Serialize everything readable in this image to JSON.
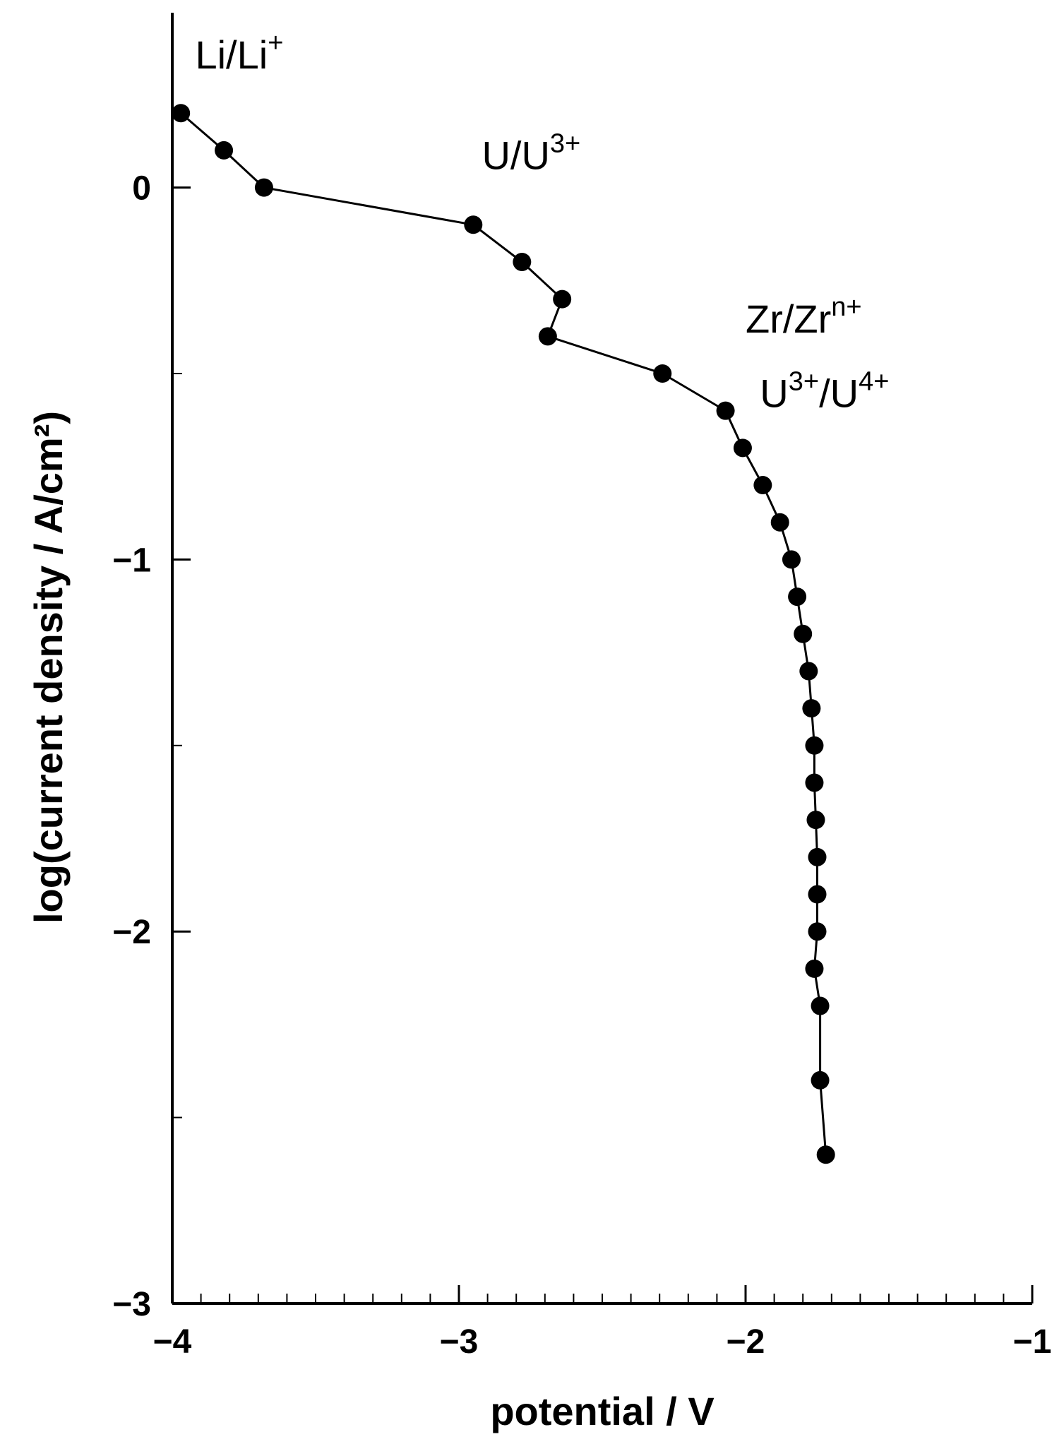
{
  "chart_data": {
    "type": "line",
    "xlabel": "potential / V",
    "ylabel": "log(current density / A/cm²)",
    "xlim": [
      -4,
      -1
    ],
    "ylim": [
      -3,
      0.47
    ],
    "x_ticks": [
      "−4",
      "−3",
      "−2",
      "−1"
    ],
    "y_ticks": [
      "0",
      "−1",
      "−2",
      "−3"
    ],
    "x_tick_values": [
      -4,
      -3,
      -2,
      -1
    ],
    "y_tick_values": [
      0,
      -1,
      -2,
      -3
    ],
    "grid": false,
    "marker": "circle",
    "line_color": "#000000",
    "series": [
      {
        "x": [
          -3.97,
          -3.82,
          -3.68,
          -2.95,
          -2.78,
          -2.64,
          -2.69,
          -2.29,
          -2.07,
          -2.01,
          -1.94,
          -1.88,
          -1.84,
          -1.82,
          -1.8,
          -1.78,
          -1.77,
          -1.76,
          -1.76,
          -1.755,
          -1.75,
          -1.75,
          -1.75,
          -1.76,
          -1.74,
          -1.74,
          -1.72
        ],
        "y": [
          0.2,
          0.1,
          0.0,
          -0.1,
          -0.2,
          -0.3,
          -0.4,
          -0.5,
          -0.6,
          -0.7,
          -0.8,
          -0.9,
          -1.0,
          -1.1,
          -1.2,
          -1.3,
          -1.4,
          -1.5,
          -1.6,
          -1.7,
          -1.8,
          -1.9,
          -2.0,
          -2.1,
          -2.2,
          -2.4,
          -2.6
        ]
      }
    ],
    "annotations": [
      {
        "id": "li",
        "base": "Li/Li",
        "sup": "+",
        "x": -3.92,
        "y": 0.32
      },
      {
        "id": "u",
        "base": "U/U",
        "sup": "3+",
        "x": -2.92,
        "y": 0.05
      },
      {
        "id": "zr",
        "base": "Zr/Zr",
        "sup": "n+",
        "x": -2.0,
        "y": -0.39
      },
      {
        "id": "u34",
        "base1": "U",
        "sup1": "3+",
        "mid": "/U",
        "sup2": "4+",
        "x": -1.95,
        "y": -0.59
      }
    ]
  }
}
